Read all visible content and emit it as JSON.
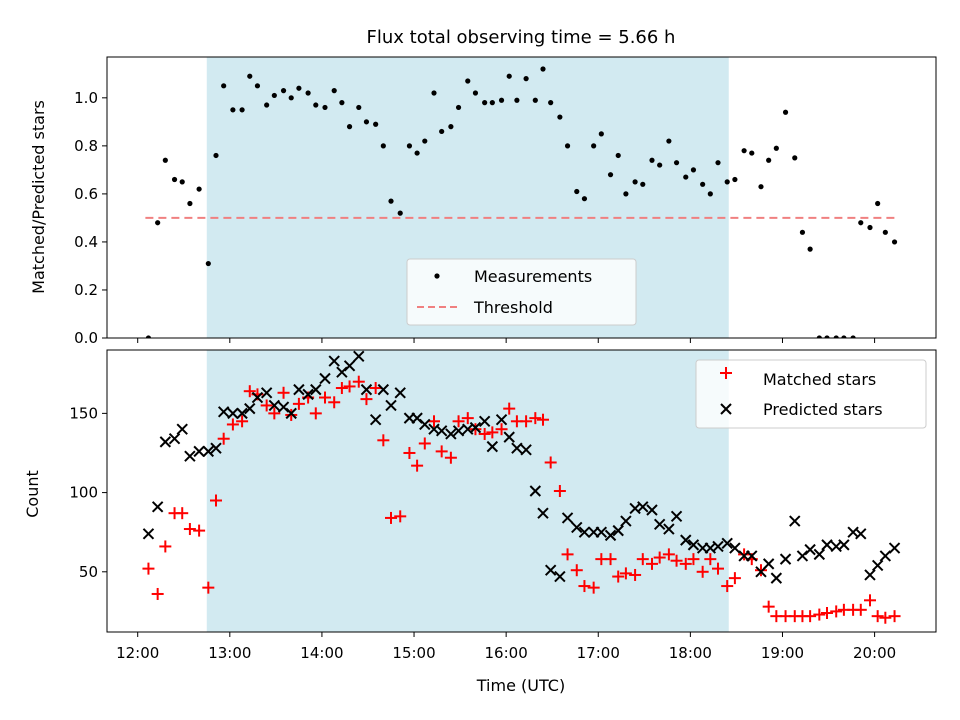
{
  "figure": {
    "title": "Flux total observing time = 5.66 h",
    "xlabel": "Time (UTC)",
    "x_ticks": [
      {
        "t": 12.0,
        "label": "12:00"
      },
      {
        "t": 13.0,
        "label": "13:00"
      },
      {
        "t": 14.0,
        "label": "14:00"
      },
      {
        "t": 15.0,
        "label": "15:00"
      },
      {
        "t": 16.0,
        "label": "16:00"
      },
      {
        "t": 17.0,
        "label": "17:00"
      },
      {
        "t": 18.0,
        "label": "18:00"
      },
      {
        "t": 19.0,
        "label": "19:00"
      },
      {
        "t": 20.0,
        "label": "20:00"
      }
    ],
    "colors": {
      "span": "#add8e6",
      "measurements": "#000000",
      "threshold": "#f08080",
      "matched": "#ff0000",
      "predicted": "#000000"
    }
  },
  "chart_data": [
    {
      "type": "scatter",
      "title": "Flux total observing time = 5.66 h",
      "ylabel": "Matched/Predicted stars",
      "xlim": [
        "11:40",
        "20:40"
      ],
      "ylim": [
        0,
        1.17
      ],
      "y_ticks": [
        "0.0",
        "0.2",
        "0.4",
        "0.6",
        "0.8",
        "1.0"
      ],
      "shaded_interval": [
        "12:45",
        "18:25"
      ],
      "legend": [
        "Measurements",
        "Threshold"
      ],
      "legend_position": "lower center",
      "threshold": {
        "value": 0.5,
        "from": "12:05",
        "to": "20:15"
      },
      "x": [
        "12:07",
        "12:13",
        "12:18",
        "12:24",
        "12:29",
        "12:34",
        "12:40",
        "12:46",
        "12:51",
        "12:56",
        "13:02",
        "13:08",
        "13:13",
        "13:18",
        "13:24",
        "13:29",
        "13:35",
        "13:40",
        "13:45",
        "13:51",
        "13:56",
        "14:02",
        "14:08",
        "14:13",
        "14:18",
        "14:24",
        "14:29",
        "14:35",
        "14:40",
        "14:45",
        "14:51",
        "14:57",
        "15:02",
        "15:07",
        "15:13",
        "15:18",
        "15:24",
        "15:29",
        "15:35",
        "15:40",
        "15:46",
        "15:51",
        "15:57",
        "16:02",
        "16:07",
        "16:13",
        "16:19",
        "16:24",
        "16:29",
        "16:35",
        "16:40",
        "16:46",
        "16:51",
        "16:57",
        "17:02",
        "17:08",
        "17:13",
        "17:18",
        "17:24",
        "17:29",
        "17:35",
        "17:40",
        "17:46",
        "17:51",
        "17:57",
        "18:02",
        "18:08",
        "18:13",
        "18:18",
        "18:24",
        "18:29",
        "18:35",
        "18:40",
        "18:46",
        "18:51",
        "18:56",
        "19:02",
        "19:08",
        "19:13",
        "19:18",
        "19:24",
        "19:29",
        "19:35",
        "19:40",
        "19:46",
        "19:51",
        "19:57",
        "20:02",
        "20:07",
        "20:13"
      ],
      "series": [
        {
          "name": "Measurements",
          "values": [
            0.0,
            0.48,
            0.74,
            0.66,
            0.65,
            0.56,
            0.62,
            0.31,
            0.76,
            1.05,
            0.95,
            0.95,
            1.09,
            1.05,
            0.97,
            1.01,
            1.03,
            1.0,
            1.04,
            1.02,
            0.97,
            0.96,
            1.03,
            0.98,
            0.88,
            0.96,
            0.9,
            0.89,
            0.8,
            0.57,
            0.52,
            0.8,
            0.77,
            0.82,
            1.02,
            0.86,
            0.88,
            0.96,
            1.07,
            1.02,
            0.98,
            0.98,
            0.99,
            1.09,
            0.99,
            1.08,
            0.99,
            1.12,
            0.98,
            0.92,
            0.8,
            0.61,
            0.58,
            0.8,
            0.85,
            0.68,
            0.76,
            0.6,
            0.65,
            0.64,
            0.74,
            0.72,
            0.82,
            0.73,
            0.67,
            0.7,
            0.64,
            0.6,
            0.73,
            0.65,
            0.66,
            0.78,
            0.77,
            0.63,
            0.74,
            0.79,
            0.94,
            0.75,
            0.44,
            0.37,
            0.0,
            0.0,
            0.0,
            0.0,
            0.0,
            0.48,
            0.46,
            0.56,
            0.44,
            0.4
          ]
        }
      ]
    },
    {
      "type": "scatter",
      "ylabel": "Count",
      "xlabel": "Time (UTC)",
      "xlim": [
        "11:40",
        "20:40"
      ],
      "ylim": [
        12,
        190
      ],
      "y_ticks": [
        "50",
        "100",
        "150"
      ],
      "shaded_interval": [
        "12:45",
        "18:25"
      ],
      "legend": [
        "Matched stars",
        "Predicted stars"
      ],
      "legend_position": "upper right",
      "x": [
        "12:07",
        "12:13",
        "12:18",
        "12:24",
        "12:29",
        "12:34",
        "12:40",
        "12:46",
        "12:51",
        "12:56",
        "13:02",
        "13:08",
        "13:13",
        "13:18",
        "13:24",
        "13:29",
        "13:35",
        "13:40",
        "13:45",
        "13:51",
        "13:56",
        "14:02",
        "14:08",
        "14:13",
        "14:18",
        "14:24",
        "14:29",
        "14:35",
        "14:40",
        "14:45",
        "14:51",
        "14:57",
        "15:02",
        "15:07",
        "15:13",
        "15:18",
        "15:24",
        "15:29",
        "15:35",
        "15:40",
        "15:46",
        "15:51",
        "15:57",
        "16:02",
        "16:07",
        "16:13",
        "16:19",
        "16:24",
        "16:29",
        "16:35",
        "16:40",
        "16:46",
        "16:51",
        "16:57",
        "17:02",
        "17:08",
        "17:13",
        "17:18",
        "17:24",
        "17:29",
        "17:35",
        "17:40",
        "17:46",
        "17:51",
        "17:57",
        "18:02",
        "18:08",
        "18:13",
        "18:18",
        "18:24",
        "18:29",
        "18:35",
        "18:40",
        "18:46",
        "18:51",
        "18:56",
        "19:02",
        "19:08",
        "19:13",
        "19:18",
        "19:24",
        "19:29",
        "19:35",
        "19:40",
        "19:46",
        "19:51",
        "19:57",
        "20:02",
        "20:07",
        "20:13"
      ],
      "series": [
        {
          "name": "Matched stars",
          "values": [
            52,
            36,
            66,
            87,
            87,
            77,
            76,
            40,
            95,
            134,
            143,
            145,
            164,
            162,
            155,
            150,
            163,
            149,
            156,
            160,
            150,
            160,
            157,
            166,
            167,
            170,
            159,
            166,
            133,
            84,
            85,
            125,
            117,
            131,
            145,
            126,
            122,
            145,
            147,
            140,
            137,
            138,
            140,
            153,
            145,
            145,
            147,
            146,
            119,
            101,
            61,
            51,
            41,
            40,
            58,
            58,
            47,
            49,
            48,
            58,
            55,
            59,
            61,
            57,
            55,
            58,
            50,
            58,
            52,
            41,
            46,
            61,
            58,
            51,
            28,
            22,
            22,
            22,
            22,
            22,
            23,
            24,
            25,
            26,
            26,
            26,
            32,
            22,
            21,
            22
          ]
        },
        {
          "name": "Predicted stars",
          "values": [
            74,
            91,
            132,
            134,
            140,
            123,
            126,
            126,
            128,
            151,
            150,
            150,
            153,
            160,
            163,
            155,
            154,
            150,
            165,
            162,
            165,
            172,
            183,
            176,
            180,
            186,
            165,
            146,
            165,
            155,
            163,
            147,
            147,
            143,
            140,
            139,
            137,
            139,
            140,
            141,
            145,
            129,
            146,
            135,
            128,
            127,
            101,
            87,
            51,
            47,
            84,
            78,
            75,
            75,
            75,
            73,
            76,
            82,
            90,
            91,
            89,
            80,
            77,
            85,
            70,
            67,
            65,
            65,
            66,
            68,
            65,
            60,
            60,
            50,
            55,
            46,
            58,
            82,
            60,
            64,
            61,
            67,
            66,
            67,
            75,
            74,
            48,
            54,
            60,
            65
          ]
        }
      ]
    }
  ]
}
